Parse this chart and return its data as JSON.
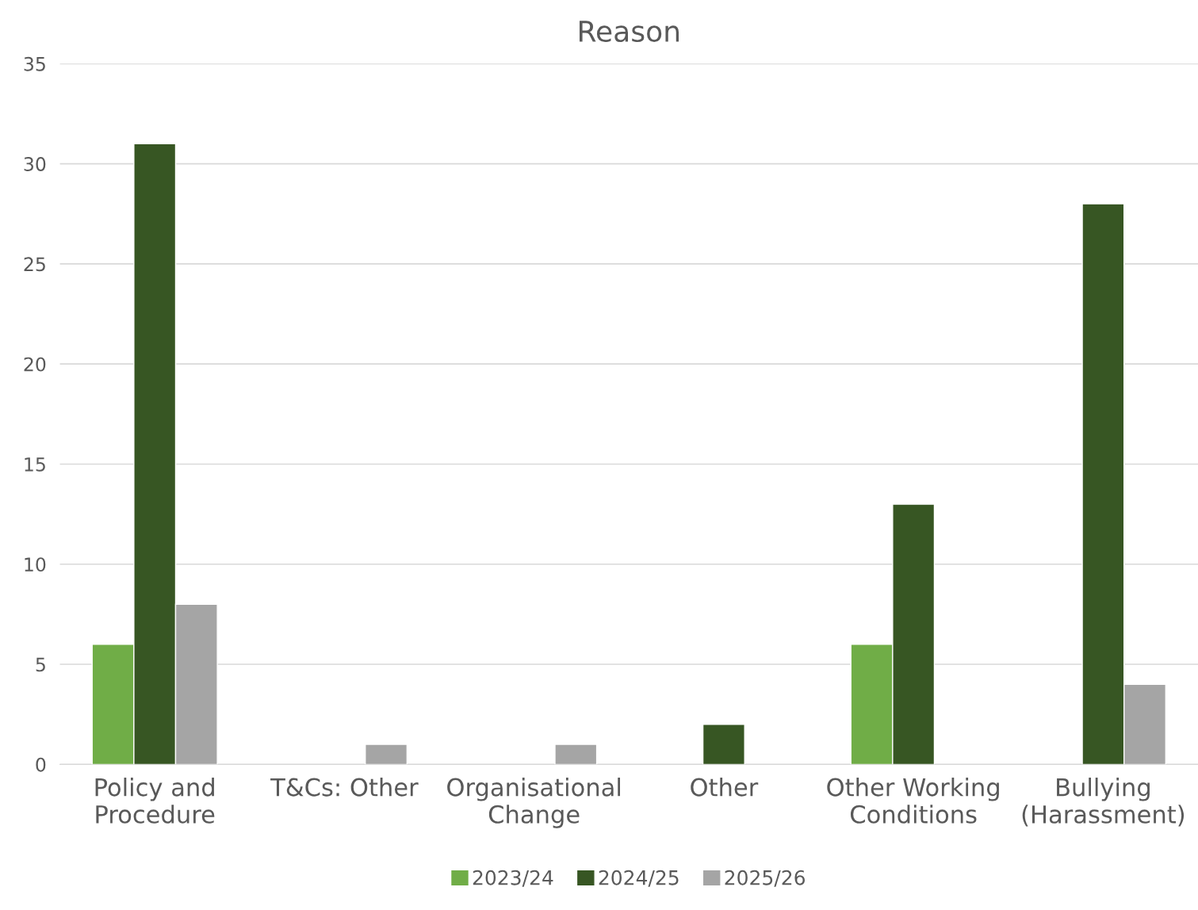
{
  "chart_data": {
    "type": "bar",
    "title": "Reason",
    "categories": [
      "Policy and\nProcedure",
      "T&Cs: Other",
      "Organisational\nChange",
      "Other",
      "Other Working\nConditions",
      "Bullying\n(Harassment)"
    ],
    "series": [
      {
        "name": "2023/24",
        "color": "#70ad47",
        "values": [
          6,
          null,
          null,
          null,
          6,
          null
        ]
      },
      {
        "name": "2024/25",
        "color": "#375623",
        "values": [
          31,
          null,
          null,
          2,
          13,
          28
        ]
      },
      {
        "name": "2025/26",
        "color": "#a5a5a5",
        "values": [
          8,
          1,
          1,
          null,
          null,
          4
        ]
      }
    ],
    "ylim": [
      0,
      35
    ],
    "yticks": [
      0,
      5,
      10,
      15,
      20,
      25,
      30,
      35
    ],
    "grid": "y",
    "legend": "bottom"
  }
}
